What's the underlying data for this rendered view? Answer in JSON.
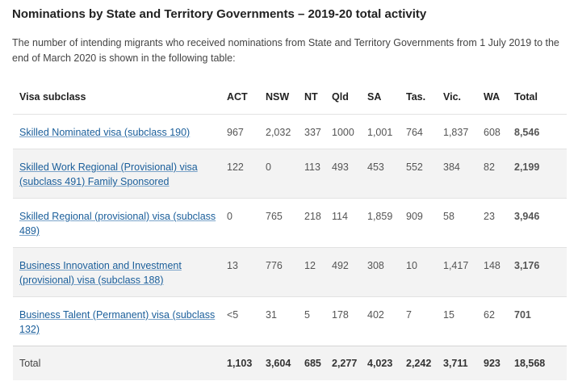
{
  "title": "Nominations by State and Territory Governments – 2019-20 total activity",
  "intro": "The number of intending migrants who received nominations from State and Territory Governments from 1 July 2019 to the end of March 2020 is shown in the following table:",
  "table": {
    "headers": [
      "Visa subclass",
      "ACT",
      "NSW",
      "NT",
      "Qld",
      "SA",
      "Tas.",
      "Vic.",
      "WA",
      "Total"
    ],
    "rows": [
      {
        "label": "Skilled Nominated visa (subclass 190)",
        "cells": [
          "967",
          "2,032",
          "337",
          "1000",
          "1,001",
          "764",
          "1,837",
          "608",
          "8,546"
        ]
      },
      {
        "label": "Skilled Work Regional (Provisional) visa (subclass 491) Family Sponsored",
        "cells": [
          "122",
          "0",
          "113",
          "493",
          "453",
          "552",
          "384",
          "82",
          "2,199"
        ]
      },
      {
        "label": "Skilled Regional (provisional) visa (subclass 489)",
        "cells": [
          "0",
          "765",
          "218",
          "114",
          "1,859",
          "909",
          "58",
          "23",
          "3,946"
        ]
      },
      {
        "label": "Business Innovation and Investment (provisional) visa (subclass 188)",
        "cells": [
          "13",
          "776",
          "12",
          "492",
          "308",
          "10",
          "1,417",
          "148",
          "3,176"
        ]
      },
      {
        "label": "Business Talent (Permanent) visa (subclass 132)",
        "cells": [
          "<5",
          "31",
          "5",
          "178",
          "402",
          "7",
          "15",
          "62",
          "701"
        ]
      }
    ],
    "total": {
      "label": "Total",
      "cells": [
        "1,103",
        "3,604",
        "685",
        "2,277",
        "4,023",
        "2,242",
        "3,711",
        "923",
        "18,568"
      ]
    }
  },
  "colors": {
    "link": "#1a5e9a",
    "alt_row": "#f3f3f3",
    "border": "#e2e2e2"
  }
}
